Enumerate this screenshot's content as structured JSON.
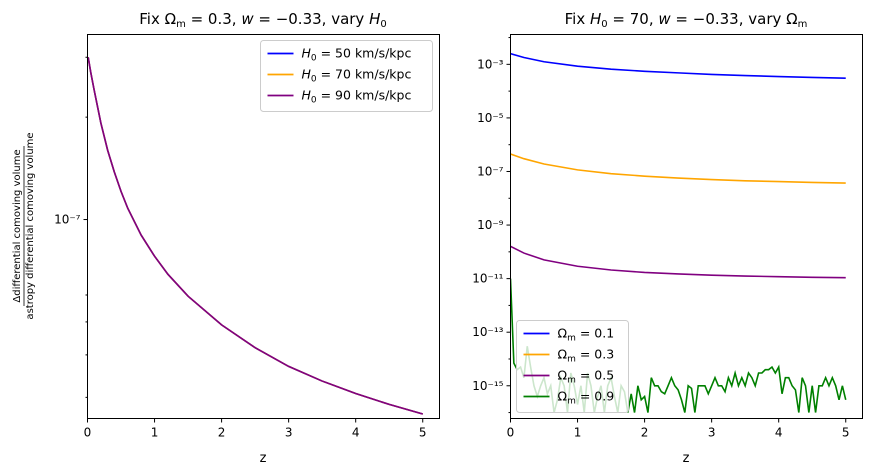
{
  "chart_data": [
    {
      "type": "line",
      "title": "Fix Ωm = 0.3, w = −0.33, vary H0",
      "xlabel": "z",
      "ylabel_numerator": "Δdifferential comoving volume",
      "ylabel_denominator": "astropy differential comoving volume",
      "xlim": [
        0,
        5.25
      ],
      "ylim": [
        2.6e-08,
        3.5e-07
      ],
      "yscale": "log",
      "x_ticks": [
        "0",
        "1",
        "2",
        "3",
        "4",
        "5"
      ],
      "y_major_tick": "10⁻⁷",
      "legend_position": "upper right",
      "x": [
        0.01,
        0.05,
        0.1,
        0.2,
        0.3,
        0.4,
        0.5,
        0.6,
        0.8,
        1.0,
        1.2,
        1.5,
        2.0,
        2.5,
        3.0,
        3.5,
        4.0,
        4.5,
        5.0
      ],
      "series": [
        {
          "name": "H0 = 50 km/s/kpc",
          "color": "#0000ff",
          "values": [
            3e-07,
            2.7e-07,
            2.4e-07,
            1.92e-07,
            1.6e-07,
            1.38e-07,
            1.21e-07,
            1.08e-07,
            9e-08,
            7.8e-08,
            6.9e-08,
            5.95e-08,
            4.9e-08,
            4.2e-08,
            3.7e-08,
            3.35e-08,
            3.08e-08,
            2.86e-08,
            2.68e-08
          ]
        },
        {
          "name": "H0 = 70 km/s/kpc",
          "color": "#ffa500",
          "values": [
            3e-07,
            2.7e-07,
            2.4e-07,
            1.92e-07,
            1.6e-07,
            1.38e-07,
            1.21e-07,
            1.08e-07,
            9e-08,
            7.8e-08,
            6.9e-08,
            5.95e-08,
            4.9e-08,
            4.2e-08,
            3.7e-08,
            3.35e-08,
            3.08e-08,
            2.86e-08,
            2.68e-08
          ]
        },
        {
          "name": "H0 = 90 km/s/kpc",
          "color": "#800080",
          "values": [
            3e-07,
            2.7e-07,
            2.4e-07,
            1.92e-07,
            1.6e-07,
            1.38e-07,
            1.21e-07,
            1.08e-07,
            9e-08,
            7.8e-08,
            6.9e-08,
            5.95e-08,
            4.9e-08,
            4.2e-08,
            3.7e-08,
            3.35e-08,
            3.08e-08,
            2.86e-08,
            2.68e-08
          ]
        }
      ]
    },
    {
      "type": "line",
      "title": "Fix H0 = 70, w = −0.33, vary Ωm",
      "xlabel": "z",
      "xlim": [
        0,
        5.25
      ],
      "ylim": [
        6e-17,
        0.013
      ],
      "yscale": "log",
      "x_ticks": [
        "0",
        "1",
        "2",
        "3",
        "4",
        "5"
      ],
      "y_ticks": [
        "10⁻³",
        "10⁻⁵",
        "10⁻⁷",
        "10⁻⁹",
        "10⁻¹¹",
        "10⁻¹³",
        "10⁻¹⁵"
      ],
      "y_tick_values": [
        0.001,
        1e-05,
        1e-07,
        1e-09,
        1e-11,
        1e-13,
        1e-15
      ],
      "legend_position": "lower left",
      "series": [
        {
          "name": "Ωm = 0.1",
          "color": "#0000ff",
          "x": [
            0,
            0.2,
            0.5,
            1.0,
            1.5,
            2.0,
            2.5,
            3.0,
            3.5,
            4.0,
            4.5,
            5.0
          ],
          "values": [
            0.0025,
            0.0018,
            0.00125,
            0.00085,
            0.00066,
            0.00055,
            0.00048,
            0.00042,
            0.00038,
            0.00035,
            0.000325,
            0.000305
          ]
        },
        {
          "name": "Ωm = 0.3",
          "color": "#ffa500",
          "x": [
            0,
            0.2,
            0.5,
            1.0,
            1.5,
            2.0,
            2.5,
            3.0,
            3.5,
            4.0,
            4.5,
            5.0
          ],
          "values": [
            4.5e-07,
            3e-07,
            1.9e-07,
            1.15e-07,
            8.3e-08,
            6.7e-08,
            5.7e-08,
            5e-08,
            4.5e-08,
            4.2e-08,
            3.9e-08,
            3.7e-08
          ]
        },
        {
          "name": "Ωm = 0.5",
          "color": "#800080",
          "x": [
            0,
            0.2,
            0.5,
            1.0,
            1.5,
            2.0,
            2.5,
            3.0,
            3.5,
            4.0,
            4.5,
            5.0
          ],
          "values": [
            1.6e-10,
            9e-11,
            5e-11,
            2.9e-11,
            2.1e-11,
            1.7e-11,
            1.5e-11,
            1.35e-11,
            1.25e-11,
            1.18e-11,
            1.12e-11,
            1.08e-11
          ]
        },
        {
          "name": "Ωm = 0.9",
          "color": "#008000",
          "x": [
            0,
            0.05,
            0.1,
            0.15,
            0.2,
            0.25,
            0.3,
            0.35,
            0.4,
            0.45,
            0.5,
            0.55,
            0.6,
            0.65,
            0.7,
            0.75,
            0.8,
            0.85,
            0.9,
            0.95,
            1.0,
            1.05,
            1.1,
            1.15,
            1.2,
            1.25,
            1.3,
            1.35,
            1.4,
            1.45,
            1.5,
            1.55,
            1.6,
            1.65,
            1.7,
            1.75,
            1.8,
            1.85,
            1.9,
            1.95,
            2.0,
            2.05,
            2.1,
            2.15,
            2.2,
            2.25,
            2.3,
            2.35,
            2.4,
            2.45,
            2.5,
            2.55,
            2.6,
            2.65,
            2.7,
            2.75,
            2.8,
            2.85,
            2.9,
            2.95,
            3.0,
            3.05,
            3.1,
            3.15,
            3.2,
            3.25,
            3.3,
            3.35,
            3.4,
            3.45,
            3.5,
            3.55,
            3.6,
            3.65,
            3.7,
            3.75,
            3.8,
            3.85,
            3.9,
            3.95,
            4.0,
            4.05,
            4.1,
            4.15,
            4.2,
            4.25,
            4.3,
            4.35,
            4.4,
            4.45,
            4.5,
            4.55,
            4.6,
            4.65,
            4.7,
            4.75,
            4.8,
            4.85,
            4.9,
            4.95,
            5.0
          ],
          "values": [
            1e-11,
            7e-15,
            4e-15,
            5e-15,
            2e-15,
            3e-14,
            5e-15,
            1e-15,
            4e-16,
            1e-15,
            2e-15,
            5e-16,
            1e-15,
            1e-16,
            3e-16,
            2e-15,
            1e-15,
            1e-16,
            3e-15,
            1e-15,
            2e-16,
            1e-15,
            1e-16,
            3e-15,
            1e-15,
            1e-16,
            4e-16,
            1e-15,
            1e-16,
            1e-15,
            2e-15,
            4e-16,
            1e-16,
            1e-15,
            6e-16,
            1e-16,
            5e-16,
            1e-16,
            1e-15,
            3e-16,
            4e-16,
            1e-16,
            2e-15,
            1e-15,
            1e-15,
            6e-16,
            5e-16,
            1e-15,
            2e-15,
            1e-15,
            7e-16,
            3e-16,
            1e-16,
            1e-15,
            8e-16,
            1e-16,
            1e-15,
            1e-15,
            1e-15,
            5e-16,
            1e-15,
            2e-15,
            1e-15,
            1e-15,
            6e-16,
            2e-15,
            1e-15,
            3e-15,
            1e-15,
            2e-15,
            1e-15,
            3e-15,
            2e-15,
            1e-15,
            3e-15,
            3e-15,
            4e-15,
            4e-15,
            5e-15,
            3e-15,
            5e-15,
            5e-16,
            2e-15,
            2e-15,
            1e-15,
            7e-16,
            1e-16,
            2e-15,
            1e-15,
            1e-16,
            1e-15,
            1e-16,
            1e-15,
            1e-15,
            2e-15,
            1e-15,
            2e-15,
            1e-15,
            3e-16,
            1e-15,
            3e-16
          ]
        }
      ]
    }
  ]
}
